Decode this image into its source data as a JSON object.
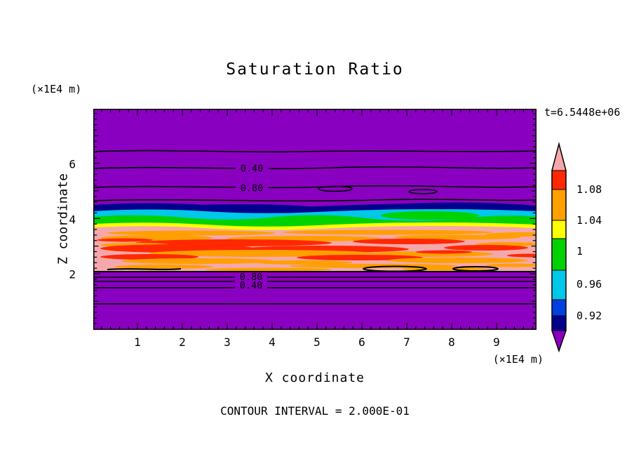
{
  "title": "Saturation Ratio",
  "timestamp": "t=6.5448e+06",
  "footer": "CONTOUR INTERVAL = 2.000E-01",
  "x_axis": {
    "label": "X coordinate",
    "unit": "(×1E4 m)",
    "ticks": [
      "1",
      "2",
      "3",
      "4",
      "5",
      "6",
      "7",
      "8",
      "9"
    ]
  },
  "y_axis": {
    "label": "Z coordinate",
    "unit": "(×1E4 m)",
    "ticks": [
      "2",
      "4",
      "6"
    ]
  },
  "contour_labels": [
    "0.40",
    "0.80",
    "0.80",
    "0.40"
  ],
  "colorbar": {
    "labels": [
      "1.08",
      "1.04",
      "1",
      "0.96",
      "0.92"
    ]
  },
  "palette": {
    "purple": "#8A00C0",
    "navy": "#00008C",
    "blue": "#0040E0",
    "cyan": "#00C8E8",
    "green": "#00D200",
    "yellow": "#FFFF00",
    "orange": "#FFA000",
    "red": "#FF2800",
    "pink": "#F5A8AC"
  },
  "chart_data": {
    "type": "heatmap",
    "title": "Saturation Ratio",
    "xlabel": "X coordinate (×1E4 m)",
    "ylabel": "Z coordinate (×1E4 m)",
    "time_label": "t=6.5448e+06",
    "contour_interval": "2.000E-01",
    "xlim": [
      0,
      9.9
    ],
    "ylim": [
      0,
      8
    ],
    "x_tick_values": [
      1,
      2,
      3,
      4,
      5,
      6,
      7,
      8,
      9
    ],
    "z_tick_values": [
      2,
      4,
      6
    ],
    "colorbar_levels": [
      0.92,
      0.96,
      1,
      1.04,
      1.08
    ],
    "colorbar_colors_top_to_bottom": [
      "pink",
      "red",
      "orange",
      "yellow",
      "green",
      "cyan",
      "blue",
      "navy",
      "purple"
    ],
    "labeled_contour_line_levels": [
      0.4,
      0.8
    ],
    "horizontal_bands_top_to_bottom": [
      {
        "z_range": [
          4.95,
          8.0
        ],
        "saturation": "< 0.92",
        "color": "purple",
        "note": "black contour lines: 0.40 at z≈5.85, 0.80 at z≈5.15, unlabeled lines at z≈6.4 and z≈4.7"
      },
      {
        "z_range": [
          4.75,
          4.95
        ],
        "saturation": "0.92–0.96",
        "color": "navy"
      },
      {
        "z_range": [
          4.6,
          4.8
        ],
        "saturation": "≈0.96",
        "color": "cyan"
      },
      {
        "z_range": [
          4.4,
          4.65
        ],
        "saturation": "0.96–1.00",
        "color": "green, wavy band"
      },
      {
        "z_range": [
          4.35,
          4.45
        ],
        "saturation": "1.00–1.04",
        "color": "yellow thin band"
      },
      {
        "z_range": [
          2.05,
          4.4
        ],
        "saturation": "1.04–1.12",
        "color": "pink with many horizontal orange and red streaks"
      },
      {
        "z_range": [
          0.0,
          2.05
        ],
        "saturation": "< 0.92",
        "color": "purple",
        "note": "black contour lines: 0.80 at z≈1.9, 0.40 at z≈1.75, unlabeled lines at z≈1.5 and z≈0.95"
      }
    ]
  }
}
